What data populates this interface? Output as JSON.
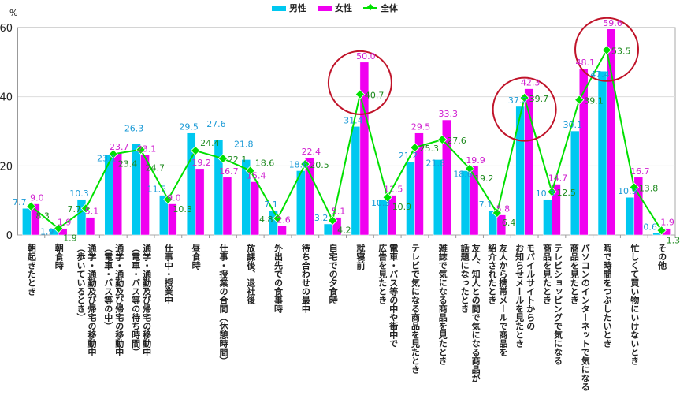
{
  "chart_data": {
    "type": "bar",
    "ylabel": "%",
    "ylim": [
      0,
      60
    ],
    "yticks": [
      "0",
      "20",
      "40",
      "60"
    ],
    "grid": true,
    "legend_placement": "top-center",
    "colors": {
      "male": "#00c8f0",
      "female": "#f000f0",
      "total": "#00e000",
      "male_label": "#1a9ad6",
      "female_label": "#d020d0",
      "total_label": "#1e8a1e",
      "circle": "#c0142a"
    },
    "categories": [
      "朝起きたとき",
      "朝食時",
      "通学・通勤及び帰宅の移動中\n（歩いているとき）",
      "通学・通勤及び帰宅の移動中\n（電車・バス等の中）",
      "通学・通勤及び帰宅の移動中\n（電車・バス等の待ち時間）",
      "仕事中・授業中",
      "昼食時",
      "仕事・授業の合間（休憩時間）",
      "放課後、退社後",
      "外出先での食事時",
      "待ち合わせの最中",
      "自宅での夕食時",
      "就寝前",
      "電車・バス等の中や街中で\n広告を見たとき",
      "テレビで気になる商品を見たとき",
      "雑誌で気になる商品を見たとき",
      "友人、知人との間で気になる商品が\n話題になったとき",
      "友人から携帯メールで商品を\n紹介されたとき",
      "モバイルサイトからの\nお知らせメールを見たとき",
      "テレビショッピングで気になる\n商品を見たとき",
      "パソコンのインターネットで気になる\n商品を見たとき",
      "暇で時間をつぶしたいとき",
      "忙しくて買い物にいけないとき",
      "その他"
    ],
    "series": [
      {
        "name": "男性",
        "kind": "bar",
        "values": [
          7.7,
          1.9,
          10.3,
          23.1,
          26.3,
          11.5,
          29.5,
          27.6,
          21.8,
          7.1,
          18.6,
          3.2,
          31.4,
          10.3,
          21.2,
          21.8,
          18.6,
          7.1,
          37.2,
          10.3,
          30.1,
          47.4,
          10.9,
          0.6
        ]
      },
      {
        "name": "女性",
        "kind": "bar",
        "values": [
          9.0,
          1.9,
          5.1,
          23.7,
          23.1,
          9.0,
          19.2,
          16.7,
          15.4,
          2.6,
          22.4,
          5.1,
          50.0,
          11.5,
          29.5,
          33.3,
          19.9,
          5.8,
          42.3,
          14.7,
          48.1,
          59.6,
          16.7,
          1.9
        ]
      },
      {
        "name": "全体",
        "kind": "line",
        "values": [
          8.3,
          1.9,
          7.7,
          23.4,
          24.7,
          10.3,
          24.4,
          22.1,
          18.6,
          4.8,
          20.5,
          4.2,
          40.7,
          10.9,
          25.3,
          27.6,
          19.2,
          6.4,
          39.7,
          12.5,
          39.1,
          53.5,
          13.8,
          1.3
        ]
      }
    ],
    "highlighted_categories": [
      12,
      18,
      21
    ]
  }
}
